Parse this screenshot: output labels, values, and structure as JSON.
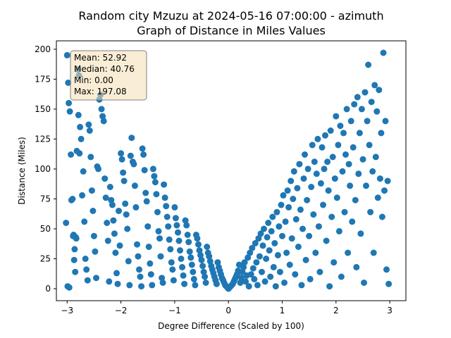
{
  "chart_data": {
    "type": "scatter",
    "title_line1": "Random city Mzuzu at 2024-05-16 07:00:00  - azimuth",
    "title_line2": "Graph of Distance in Miles Values",
    "xlabel": "Degree Difference (Scaled by 100)",
    "ylabel": "Distance (Miles)",
    "xlim": [
      -3.2,
      3.3
    ],
    "ylim": [
      -10,
      207
    ],
    "xticks": [
      -3,
      -2,
      -1,
      0,
      1,
      2,
      3
    ],
    "yticks": [
      0,
      25,
      50,
      75,
      100,
      125,
      150,
      175,
      200
    ],
    "point_color": "#1f77b4",
    "stats": {
      "mean": "Mean: 52.92",
      "median": "Median: 40.76",
      "min": "Min: 0.00",
      "max": "Max: 197.08"
    },
    "stats_box_fill": "#f5deb3",
    "points": [
      [
        -3.0,
        195
      ],
      [
        -2.98,
        172
      ],
      [
        -2.97,
        155
      ],
      [
        -2.95,
        148
      ],
      [
        -2.93,
        112
      ],
      [
        -2.9,
        75
      ],
      [
        -2.88,
        45
      ],
      [
        -2.86,
        33
      ],
      [
        -2.85,
        14
      ],
      [
        -2.83,
        42
      ],
      [
        -2.8,
        183
      ],
      [
        -2.78,
        178
      ],
      [
        -2.76,
        135
      ],
      [
        -2.74,
        125
      ],
      [
        -2.72,
        78
      ],
      [
        -2.7,
        98
      ],
      [
        -2.68,
        56
      ],
      [
        -2.66,
        25
      ],
      [
        -2.64,
        16
      ],
      [
        -2.62,
        7
      ],
      [
        -3.02,
        55
      ],
      [
        -2.99,
        2
      ],
      [
        -2.96,
        1
      ],
      [
        -2.92,
        74
      ],
      [
        -2.89,
        44
      ],
      [
        -2.87,
        24
      ],
      [
        -2.84,
        43
      ],
      [
        -2.82,
        115
      ],
      [
        -2.79,
        145
      ],
      [
        -2.77,
        113
      ],
      [
        -2.6,
        137
      ],
      [
        -2.58,
        132
      ],
      [
        -2.56,
        110
      ],
      [
        -2.54,
        82
      ],
      [
        -2.52,
        65
      ],
      [
        -2.5,
        44
      ],
      [
        -2.48,
        31
      ],
      [
        -2.46,
        9
      ],
      [
        -2.44,
        102
      ],
      [
        -2.42,
        100
      ],
      [
        -2.4,
        158
      ],
      [
        -2.38,
        162
      ],
      [
        -2.36,
        150
      ],
      [
        -2.34,
        144
      ],
      [
        -2.32,
        140
      ],
      [
        -2.3,
        92
      ],
      [
        -2.28,
        76
      ],
      [
        -2.26,
        55
      ],
      [
        -2.24,
        40
      ],
      [
        -2.22,
        6
      ],
      [
        -2.2,
        85
      ],
      [
        -2.18,
        74
      ],
      [
        -2.16,
        70
      ],
      [
        -2.14,
        57
      ],
      [
        -2.12,
        46
      ],
      [
        -2.1,
        30
      ],
      [
        -2.08,
        13
      ],
      [
        -2.06,
        4
      ],
      [
        -2.04,
        65
      ],
      [
        -2.02,
        36
      ],
      [
        -2.0,
        113
      ],
      [
        -1.98,
        108
      ],
      [
        -1.96,
        97
      ],
      [
        -1.94,
        90
      ],
      [
        -1.92,
        71
      ],
      [
        -1.9,
        62
      ],
      [
        -1.88,
        50
      ],
      [
        -1.86,
        23
      ],
      [
        -1.84,
        3
      ],
      [
        -1.82,
        111
      ],
      [
        -1.8,
        126
      ],
      [
        -1.78,
        106
      ],
      [
        -1.76,
        104
      ],
      [
        -1.74,
        86
      ],
      [
        -1.72,
        68
      ],
      [
        -1.7,
        37
      ],
      [
        -1.68,
        27
      ],
      [
        -1.66,
        16
      ],
      [
        -1.64,
        10
      ],
      [
        -1.62,
        2
      ],
      [
        -1.6,
        117
      ],
      [
        -1.58,
        112
      ],
      [
        -1.56,
        99
      ],
      [
        -1.54,
        80
      ],
      [
        -1.52,
        73
      ],
      [
        -1.5,
        52
      ],
      [
        -1.48,
        35
      ],
      [
        -1.46,
        21
      ],
      [
        -1.44,
        12
      ],
      [
        -1.42,
        3
      ],
      [
        -1.4,
        100
      ],
      [
        -1.38,
        94
      ],
      [
        -1.36,
        89
      ],
      [
        -1.34,
        79
      ],
      [
        -1.32,
        64
      ],
      [
        -1.3,
        48
      ],
      [
        -1.28,
        42
      ],
      [
        -1.26,
        27
      ],
      [
        -1.24,
        9
      ],
      [
        -1.22,
        5
      ],
      [
        -1.2,
        87
      ],
      [
        -1.18,
        76
      ],
      [
        -1.16,
        69
      ],
      [
        -1.14,
        60
      ],
      [
        -1.12,
        52
      ],
      [
        -1.1,
        41
      ],
      [
        -1.08,
        33
      ],
      [
        -1.06,
        22
      ],
      [
        -1.04,
        16
      ],
      [
        -1.02,
        7
      ],
      [
        -1.0,
        68
      ],
      [
        -0.98,
        59
      ],
      [
        -0.96,
        53
      ],
      [
        -0.94,
        47
      ],
      [
        -0.92,
        40
      ],
      [
        -0.9,
        32
      ],
      [
        -0.88,
        25
      ],
      [
        -0.86,
        18
      ],
      [
        -0.84,
        11
      ],
      [
        -0.82,
        4
      ],
      [
        -0.8,
        57
      ],
      [
        -0.78,
        53
      ],
      [
        -0.76,
        45
      ],
      [
        -0.74,
        39
      ],
      [
        -0.72,
        31
      ],
      [
        -0.7,
        26
      ],
      [
        -0.68,
        20
      ],
      [
        -0.66,
        14
      ],
      [
        -0.64,
        8
      ],
      [
        -0.62,
        3
      ],
      [
        -0.6,
        45
      ],
      [
        -0.58,
        42
      ],
      [
        -0.56,
        37
      ],
      [
        -0.54,
        32
      ],
      [
        -0.52,
        28
      ],
      [
        -0.5,
        24
      ],
      [
        -0.48,
        19
      ],
      [
        -0.46,
        14
      ],
      [
        -0.44,
        10
      ],
      [
        -0.42,
        5
      ],
      [
        -0.4,
        35
      ],
      [
        -0.38,
        30
      ],
      [
        -0.36,
        27
      ],
      [
        -0.34,
        23
      ],
      [
        -0.32,
        19
      ],
      [
        -0.3,
        16
      ],
      [
        -0.28,
        13
      ],
      [
        -0.26,
        10
      ],
      [
        -0.24,
        7
      ],
      [
        -0.22,
        4
      ],
      [
        -0.2,
        22
      ],
      [
        -0.18,
        18
      ],
      [
        -0.16,
        15
      ],
      [
        -0.14,
        12
      ],
      [
        -0.12,
        9
      ],
      [
        -0.1,
        7
      ],
      [
        -0.08,
        5
      ],
      [
        -0.06,
        3
      ],
      [
        -0.04,
        2
      ],
      [
        -0.02,
        1
      ],
      [
        0.0,
        0
      ],
      [
        0.02,
        1
      ],
      [
        0.04,
        2
      ],
      [
        0.06,
        3
      ],
      [
        0.08,
        4
      ],
      [
        0.1,
        6
      ],
      [
        0.12,
        8
      ],
      [
        0.14,
        10
      ],
      [
        0.16,
        12
      ],
      [
        0.18,
        15
      ],
      [
        0.2,
        20
      ],
      [
        0.22,
        5
      ],
      [
        0.24,
        9
      ],
      [
        0.26,
        14
      ],
      [
        0.28,
        18
      ],
      [
        0.3,
        22
      ],
      [
        0.32,
        6
      ],
      [
        0.34,
        11
      ],
      [
        0.36,
        26
      ],
      [
        0.38,
        2
      ],
      [
        0.4,
        30
      ],
      [
        0.42,
        12
      ],
      [
        0.44,
        34
      ],
      [
        0.46,
        17
      ],
      [
        0.48,
        8
      ],
      [
        0.5,
        38
      ],
      [
        0.52,
        22
      ],
      [
        0.54,
        3
      ],
      [
        0.56,
        42
      ],
      [
        0.58,
        27
      ],
      [
        0.6,
        46
      ],
      [
        0.62,
        14
      ],
      [
        0.64,
        36
      ],
      [
        0.66,
        50
      ],
      [
        0.68,
        6
      ],
      [
        0.7,
        25
      ],
      [
        0.72,
        43
      ],
      [
        0.74,
        55
      ],
      [
        0.76,
        32
      ],
      [
        0.78,
        10
      ],
      [
        0.8,
        48
      ],
      [
        0.82,
        60
      ],
      [
        0.84,
        18
      ],
      [
        0.86,
        38
      ],
      [
        0.88,
        2
      ],
      [
        0.9,
        64
      ],
      [
        0.92,
        28
      ],
      [
        0.94,
        52
      ],
      [
        0.96,
        14
      ],
      [
        0.98,
        70
      ],
      [
        1.0,
        44
      ],
      [
        1.02,
        78
      ],
      [
        1.04,
        5
      ],
      [
        1.06,
        56
      ],
      [
        1.08,
        30
      ],
      [
        1.1,
        82
      ],
      [
        1.12,
        68
      ],
      [
        1.14,
        20
      ],
      [
        1.16,
        90
      ],
      [
        1.18,
        42
      ],
      [
        1.2,
        75
      ],
      [
        1.22,
        98
      ],
      [
        1.24,
        12
      ],
      [
        1.26,
        58
      ],
      [
        1.28,
        84
      ],
      [
        1.3,
        35
      ],
      [
        1.32,
        104
      ],
      [
        1.34,
        66
      ],
      [
        1.36,
        3
      ],
      [
        1.38,
        50
      ],
      [
        1.4,
        92
      ],
      [
        1.42,
        112
      ],
      [
        1.44,
        24
      ],
      [
        1.46,
        74
      ],
      [
        1.48,
        100
      ],
      [
        1.5,
        44
      ],
      [
        1.52,
        8
      ],
      [
        1.54,
        85
      ],
      [
        1.56,
        120
      ],
      [
        1.58,
        62
      ],
      [
        1.6,
        106
      ],
      [
        1.62,
        30
      ],
      [
        1.64,
        96
      ],
      [
        1.66,
        125
      ],
      [
        1.68,
        52
      ],
      [
        1.7,
        14
      ],
      [
        1.72,
        88
      ],
      [
        1.74,
        118
      ],
      [
        1.76,
        70
      ],
      [
        1.78,
        100
      ],
      [
        1.8,
        128
      ],
      [
        1.82,
        40
      ],
      [
        1.84,
        106
      ],
      [
        1.86,
        82
      ],
      [
        1.88,
        2
      ],
      [
        1.9,
        132
      ],
      [
        1.92,
        60
      ],
      [
        1.94,
        110
      ],
      [
        1.96,
        22
      ],
      [
        1.98,
        92
      ],
      [
        2.0,
        144
      ],
      [
        2.02,
        76
      ],
      [
        2.04,
        120
      ],
      [
        2.06,
        48
      ],
      [
        2.08,
        136
      ],
      [
        2.1,
        10
      ],
      [
        2.12,
        98
      ],
      [
        2.14,
        130
      ],
      [
        2.16,
        64
      ],
      [
        2.18,
        112
      ],
      [
        2.2,
        150
      ],
      [
        2.22,
        30
      ],
      [
        2.24,
        104
      ],
      [
        2.26,
        86
      ],
      [
        2.28,
        140
      ],
      [
        2.3,
        56
      ],
      [
        2.32,
        118
      ],
      [
        2.34,
        154
      ],
      [
        2.36,
        74
      ],
      [
        2.38,
        18
      ],
      [
        2.4,
        160
      ],
      [
        2.42,
        96
      ],
      [
        2.44,
        130
      ],
      [
        2.46,
        46
      ],
      [
        2.48,
        150
      ],
      [
        2.5,
        108
      ],
      [
        2.52,
        5
      ],
      [
        2.54,
        164
      ],
      [
        2.56,
        86
      ],
      [
        2.58,
        140
      ],
      [
        2.6,
        187
      ],
      [
        2.62,
        120
      ],
      [
        2.64,
        64
      ],
      [
        2.66,
        156
      ],
      [
        2.68,
        98
      ],
      [
        2.7,
        30
      ],
      [
        2.72,
        170
      ],
      [
        2.74,
        110
      ],
      [
        2.76,
        148
      ],
      [
        2.78,
        76
      ],
      [
        2.8,
        166
      ],
      [
        2.82,
        92
      ],
      [
        2.84,
        130
      ],
      [
        2.86,
        60
      ],
      [
        2.88,
        197
      ],
      [
        2.9,
        82
      ],
      [
        2.92,
        140
      ],
      [
        2.94,
        16
      ],
      [
        2.96,
        90
      ],
      [
        2.98,
        4
      ]
    ]
  }
}
